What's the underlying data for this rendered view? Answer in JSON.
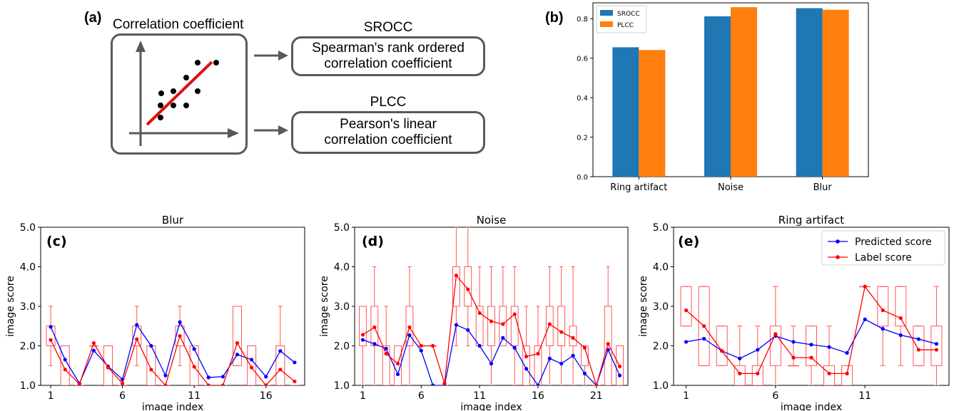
{
  "panel_a": {
    "label": "(a)",
    "box_title": "Correlation coefficient",
    "metrics": [
      {
        "abbr": "SROCC",
        "line1": "Spearman's rank ordered",
        "line2": "correlation coefficient"
      },
      {
        "abbr": "PLCC",
        "line1": "Pearson's linear",
        "line2": "correlation coefficient"
      }
    ]
  },
  "chart_data": [
    {
      "panel": "(b)",
      "type": "bar",
      "categories": [
        "Ring artifact",
        "Noise",
        "Blur"
      ],
      "series": [
        {
          "name": "SROCC",
          "values": [
            0.655,
            0.812,
            0.853
          ]
        },
        {
          "name": "PLCC",
          "values": [
            0.641,
            0.858,
            0.845
          ]
        }
      ],
      "ylim": [
        0,
        0.88
      ],
      "yticks": [
        "0.0",
        "0.2",
        "0.4",
        "0.6",
        "0.8"
      ],
      "legend": "top-left",
      "colors": {
        "SROCC": "#1f77b4",
        "PLCC": "#ff7f0e"
      }
    },
    {
      "panel": "(c)",
      "type": "line",
      "title": "Blur",
      "xlabel": "image index",
      "ylabel": "image score",
      "xlim": [
        0.3,
        18.7
      ],
      "ylim": [
        1.0,
        5.0
      ],
      "xticks": [
        "1",
        "6",
        "11",
        "16"
      ],
      "yticks": [
        "1.0",
        "2.0",
        "3.0",
        "4.0",
        "5.0"
      ],
      "x": [
        1,
        2,
        3,
        4,
        5,
        6,
        7,
        8,
        9,
        10,
        11,
        12,
        13,
        14,
        15,
        16,
        17,
        18
      ],
      "series": [
        {
          "name": "Predicted score",
          "color": "#0000ff",
          "values": [
            2.48,
            1.65,
            1.05,
            1.88,
            1.48,
            1.15,
            2.53,
            2.0,
            1.25,
            2.6,
            1.92,
            1.2,
            1.22,
            1.78,
            1.65,
            1.22,
            1.87,
            1.58
          ]
        },
        {
          "name": "Label score",
          "color": "#ff0000",
          "values": [
            2.15,
            1.4,
            1.03,
            2.07,
            1.45,
            1.05,
            2.17,
            1.4,
            1.0,
            2.25,
            1.47,
            1.0,
            1.0,
            2.07,
            1.45,
            1.0,
            1.4,
            1.1
          ]
        }
      ],
      "boxes": [
        {
          "x": 1,
          "q1": 2.0,
          "q3": 2.5,
          "lo": 1.5,
          "hi": 3.0
        },
        {
          "x": 2,
          "q1": 1.0,
          "q3": 2.0,
          "lo": 1.0,
          "hi": 2.0
        },
        {
          "x": 3,
          "q1": 1.0,
          "q3": 1.0,
          "lo": 1.0,
          "hi": 1.0
        },
        {
          "x": 4,
          "q1": 2.0,
          "q3": 2.0,
          "lo": 2.0,
          "hi": 2.0
        },
        {
          "x": 5,
          "q1": 1.0,
          "q3": 2.0,
          "lo": 1.0,
          "hi": 2.0
        },
        {
          "x": 6,
          "q1": 1.0,
          "q3": 1.0,
          "lo": 1.0,
          "hi": 1.0
        },
        {
          "x": 7,
          "q1": 2.0,
          "q3": 2.5,
          "lo": 1.5,
          "hi": 3.0
        },
        {
          "x": 8,
          "q1": 1.0,
          "q3": 2.0,
          "lo": 1.0,
          "hi": 2.0
        },
        {
          "x": 9,
          "q1": 1.0,
          "q3": 1.0,
          "lo": 1.0,
          "hi": 1.0
        },
        {
          "x": 10,
          "q1": 2.0,
          "q3": 2.5,
          "lo": 1.5,
          "hi": 3.0
        },
        {
          "x": 11,
          "q1": 1.0,
          "q3": 2.0,
          "lo": 1.0,
          "hi": 2.0
        },
        {
          "x": 12,
          "q1": 1.0,
          "q3": 1.0,
          "lo": 1.0,
          "hi": 1.0
        },
        {
          "x": 13,
          "q1": 1.0,
          "q3": 1.0,
          "lo": 1.0,
          "hi": 1.0
        },
        {
          "x": 14,
          "q1": 1.5,
          "q3": 3.0,
          "lo": 1.5,
          "hi": 3.0
        },
        {
          "x": 15,
          "q1": 1.0,
          "q3": 2.0,
          "lo": 1.0,
          "hi": 2.0
        },
        {
          "x": 16,
          "q1": 1.0,
          "q3": 1.0,
          "lo": 1.0,
          "hi": 1.0
        },
        {
          "x": 17,
          "q1": 1.0,
          "q3": 2.0,
          "lo": 1.0,
          "hi": 3.0
        },
        {
          "x": 18,
          "q1": 1.0,
          "q3": 1.0,
          "lo": 1.0,
          "hi": 1.0
        }
      ]
    },
    {
      "panel": "(d)",
      "type": "line",
      "title": "Noise",
      "xlabel": "image index",
      "ylabel": "image score",
      "xlim": [
        0.3,
        23.7
      ],
      "ylim": [
        1.0,
        5.0
      ],
      "xticks": [
        "1",
        "6",
        "11",
        "16",
        "21"
      ],
      "yticks": [
        "1.0",
        "2.0",
        "3.0",
        "4.0",
        "5.0"
      ],
      "x": [
        1,
        2,
        3,
        4,
        5,
        6,
        7,
        8,
        9,
        10,
        11,
        12,
        13,
        14,
        15,
        16,
        17,
        18,
        19,
        20,
        21,
        22,
        23
      ],
      "series": [
        {
          "name": "Predicted score",
          "color": "#0000ff",
          "values": [
            2.15,
            2.05,
            1.93,
            1.28,
            2.27,
            1.88,
            1.0,
            1.0,
            2.53,
            2.4,
            2.0,
            1.55,
            2.2,
            1.95,
            1.42,
            1.0,
            1.68,
            1.55,
            1.75,
            1.3,
            1.0,
            1.9,
            1.25
          ]
        },
        {
          "name": "Label score",
          "color": "#ff0000",
          "values": [
            2.28,
            2.47,
            1.8,
            1.55,
            2.47,
            2.0,
            2.0,
            1.05,
            3.78,
            3.43,
            2.83,
            2.62,
            2.55,
            2.8,
            1.73,
            1.8,
            2.55,
            2.35,
            2.2,
            1.95,
            1.0,
            2.05,
            1.48
          ]
        }
      ],
      "boxes": [
        {
          "x": 1,
          "q1": 2.0,
          "q3": 3.0,
          "lo": 1.0,
          "hi": 3.0
        },
        {
          "x": 2,
          "q1": 2.0,
          "q3": 3.0,
          "lo": 1.0,
          "hi": 4.0
        },
        {
          "x": 3,
          "q1": 1.0,
          "q3": 2.0,
          "lo": 1.0,
          "hi": 3.0
        },
        {
          "x": 4,
          "q1": 1.0,
          "q3": 2.0,
          "lo": 1.0,
          "hi": 2.0
        },
        {
          "x": 5,
          "q1": 2.0,
          "q3": 3.0,
          "lo": 1.0,
          "hi": 4.0
        },
        {
          "x": 6,
          "q1": 2.0,
          "q3": 2.0,
          "lo": 2.0,
          "hi": 2.0
        },
        {
          "x": 7,
          "q1": 2.0,
          "q3": 2.0,
          "lo": 2.0,
          "hi": 2.0
        },
        {
          "x": 8,
          "q1": 1.0,
          "q3": 1.0,
          "lo": 1.0,
          "hi": 1.0
        },
        {
          "x": 9,
          "q1": 3.0,
          "q3": 4.0,
          "lo": 2.0,
          "hi": 5.0
        },
        {
          "x": 10,
          "q1": 3.0,
          "q3": 4.0,
          "lo": 2.0,
          "hi": 5.0
        },
        {
          "x": 11,
          "q1": 2.0,
          "q3": 3.0,
          "lo": 2.0,
          "hi": 4.0
        },
        {
          "x": 12,
          "q1": 2.0,
          "q3": 3.0,
          "lo": 1.0,
          "hi": 4.0
        },
        {
          "x": 13,
          "q1": 2.0,
          "q3": 3.0,
          "lo": 2.0,
          "hi": 4.0
        },
        {
          "x": 14,
          "q1": 2.0,
          "q3": 3.0,
          "lo": 1.0,
          "hi": 4.0
        },
        {
          "x": 15,
          "q1": 1.0,
          "q3": 2.0,
          "lo": 1.0,
          "hi": 3.0
        },
        {
          "x": 16,
          "q1": 1.0,
          "q3": 2.0,
          "lo": 1.0,
          "hi": 3.0
        },
        {
          "x": 17,
          "q1": 2.0,
          "q3": 3.0,
          "lo": 1.0,
          "hi": 4.0
        },
        {
          "x": 18,
          "q1": 2.0,
          "q3": 3.0,
          "lo": 1.0,
          "hi": 4.0
        },
        {
          "x": 19,
          "q1": 2.0,
          "q3": 2.5,
          "lo": 1.0,
          "hi": 4.0
        },
        {
          "x": 20,
          "q1": 1.5,
          "q3": 2.0,
          "lo": 1.0,
          "hi": 2.0
        },
        {
          "x": 21,
          "q1": 1.0,
          "q3": 1.0,
          "lo": 1.0,
          "hi": 1.0
        },
        {
          "x": 22,
          "q1": 1.0,
          "q3": 3.0,
          "lo": 1.0,
          "hi": 4.0
        },
        {
          "x": 23,
          "q1": 1.0,
          "q3": 2.0,
          "lo": 1.0,
          "hi": 2.0
        }
      ]
    },
    {
      "panel": "(e)",
      "type": "line",
      "title": "Ring artifact",
      "xlabel": "image index",
      "ylabel": "image score",
      "xlim": [
        0.3,
        15.7
      ],
      "ylim": [
        1.0,
        5.0
      ],
      "xticks": [
        "1",
        "6",
        "11"
      ],
      "yticks": [
        "1.0",
        "2.0",
        "3.0",
        "4.0",
        "5.0"
      ],
      "legend": "top-right",
      "x": [
        1,
        2,
        3,
        4,
        5,
        6,
        7,
        8,
        9,
        10,
        11,
        12,
        13,
        14,
        15
      ],
      "series": [
        {
          "name": "Predicted score",
          "color": "#0000ff",
          "values": [
            2.1,
            2.18,
            1.87,
            1.68,
            1.9,
            2.25,
            2.1,
            2.03,
            1.97,
            1.82,
            2.67,
            2.43,
            2.27,
            2.17,
            2.05
          ]
        },
        {
          "name": "Label score",
          "color": "#ff0000",
          "values": [
            2.9,
            2.5,
            1.87,
            1.3,
            1.3,
            2.3,
            1.7,
            1.7,
            1.3,
            1.3,
            3.5,
            2.9,
            2.7,
            1.9,
            1.9
          ]
        }
      ],
      "boxes": [
        {
          "x": 1,
          "q1": 2.5,
          "q3": 3.5,
          "lo": 2.5,
          "hi": 3.5
        },
        {
          "x": 2,
          "q1": 1.5,
          "q3": 3.5,
          "lo": 1.5,
          "hi": 3.5
        },
        {
          "x": 3,
          "q1": 1.5,
          "q3": 2.5,
          "lo": 1.5,
          "hi": 2.5
        },
        {
          "x": 4,
          "q1": 1.0,
          "q3": 1.5,
          "lo": 1.0,
          "hi": 2.5
        },
        {
          "x": 5,
          "q1": 1.0,
          "q3": 1.5,
          "lo": 1.0,
          "hi": 2.5
        },
        {
          "x": 6,
          "q1": 1.5,
          "q3": 2.5,
          "lo": 1.0,
          "hi": 3.5
        },
        {
          "x": 7,
          "q1": 1.5,
          "q3": 1.5,
          "lo": 1.5,
          "hi": 2.5
        },
        {
          "x": 8,
          "q1": 1.5,
          "q3": 2.5,
          "lo": 1.0,
          "hi": 2.5
        },
        {
          "x": 9,
          "q1": 1.0,
          "q3": 1.5,
          "lo": 1.0,
          "hi": 2.5
        },
        {
          "x": 10,
          "q1": 1.0,
          "q3": 1.5,
          "lo": 1.0,
          "hi": 1.5
        },
        {
          "x": 11,
          "q1": 3.5,
          "q3": 3.5,
          "lo": 3.5,
          "hi": 3.5
        },
        {
          "x": 12,
          "q1": 2.5,
          "q3": 3.5,
          "lo": 1.5,
          "hi": 3.5
        },
        {
          "x": 13,
          "q1": 2.5,
          "q3": 3.5,
          "lo": 1.5,
          "hi": 3.5
        },
        {
          "x": 14,
          "q1": 1.5,
          "q3": 2.5,
          "lo": 1.5,
          "hi": 2.5
        },
        {
          "x": 15,
          "q1": 1.5,
          "q3": 2.5,
          "lo": 1.0,
          "hi": 3.5
        }
      ]
    }
  ]
}
